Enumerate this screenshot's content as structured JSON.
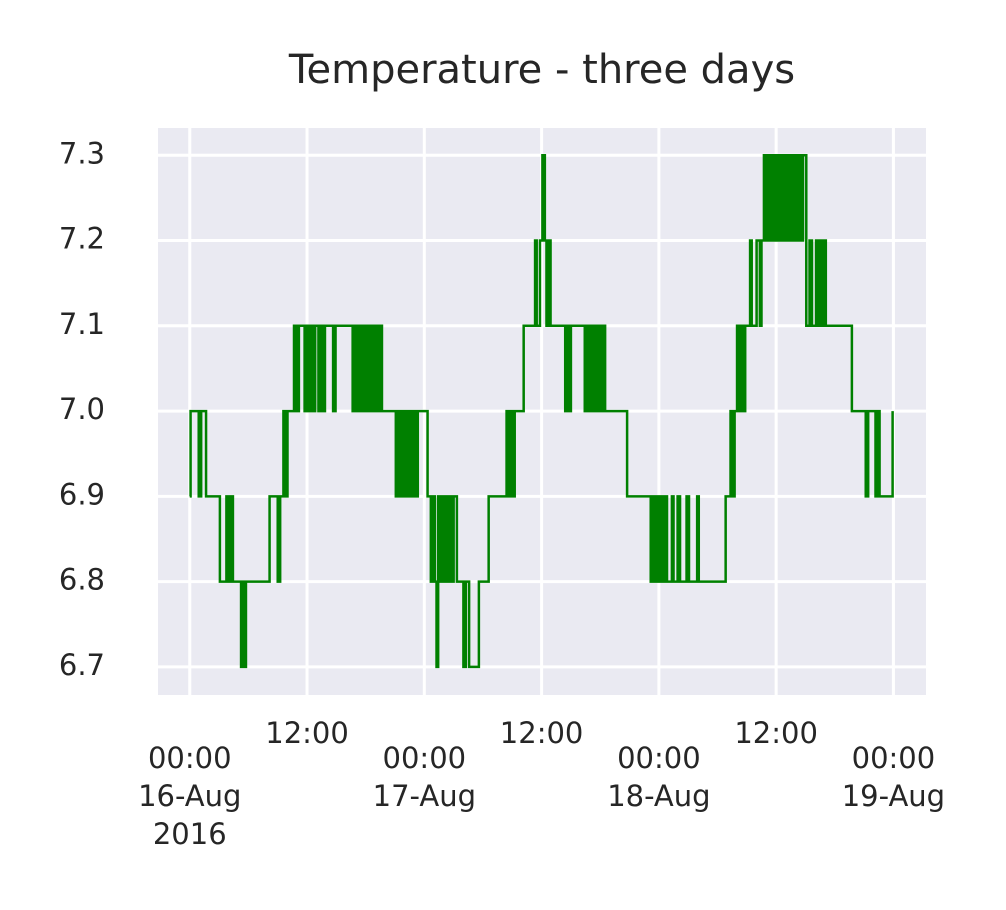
{
  "chart_data": {
    "type": "line",
    "drawstyle": "steps-post",
    "title": "Temperature - three days",
    "color": "#008000",
    "grid": true,
    "x": [
      "2016-08-16 00:00",
      "2016-08-16 00:05",
      "2016-08-16 00:55",
      "2016-08-16 01:10",
      "2016-08-16 01:40",
      "2016-08-16 03:05",
      "2016-08-16 03:45",
      "2016-08-16 04:00",
      "2016-08-16 04:10",
      "2016-08-16 04:25",
      "2016-08-16 05:15",
      "2016-08-16 05:25",
      "2016-08-16 05:40",
      "2016-08-16 05:45",
      "2016-08-16 08:10",
      "2016-08-16 09:00",
      "2016-08-16 09:15",
      "2016-08-16 09:35",
      "2016-08-16 09:50",
      "2016-08-16 10:00",
      "2016-08-16 10:40",
      "2016-08-16 10:55",
      "2016-08-16 11:10",
      "2016-08-16 11:45",
      "2016-08-16 12:00",
      "2016-08-16 12:10",
      "2016-08-16 12:25",
      "2016-08-16 12:35",
      "2016-08-16 12:50",
      "2016-08-16 13:10",
      "2016-08-16 13:25",
      "2016-08-16 13:35",
      "2016-08-16 13:50",
      "2016-08-16 14:40",
      "2016-08-16 14:55",
      "2016-08-16 16:40",
      "2016-08-16 16:55",
      "2016-08-16 17:05",
      "2016-08-16 17:20",
      "2016-08-16 17:30",
      "2016-08-16 17:40",
      "2016-08-16 17:55",
      "2016-08-16 18:05",
      "2016-08-16 18:20",
      "2016-08-16 18:30",
      "2016-08-16 18:45",
      "2016-08-16 18:55",
      "2016-08-16 19:10",
      "2016-08-16 19:25",
      "2016-08-16 19:40",
      "2016-08-16 21:05",
      "2016-08-16 21:15",
      "2016-08-16 21:30",
      "2016-08-16 21:40",
      "2016-08-16 21:55",
      "2016-08-16 22:05",
      "2016-08-16 22:20",
      "2016-08-16 22:30",
      "2016-08-16 22:45",
      "2016-08-16 22:55",
      "2016-08-16 23:10",
      "2016-08-16 23:20",
      "2016-08-17 00:20",
      "2016-08-17 00:40",
      "2016-08-17 00:50",
      "2016-08-17 01:05",
      "2016-08-17 01:15",
      "2016-08-17 01:25",
      "2016-08-17 01:35",
      "2016-08-17 01:45",
      "2016-08-17 02:00",
      "2016-08-17 02:10",
      "2016-08-17 02:25",
      "2016-08-17 02:35",
      "2016-08-17 02:50",
      "2016-08-17 03:00",
      "2016-08-17 03:20",
      "2016-08-17 04:00",
      "2016-08-17 04:15",
      "2016-08-17 04:35",
      "2016-08-17 05:35",
      "2016-08-17 06:35",
      "2016-08-17 08:25",
      "2016-08-17 08:40",
      "2016-08-17 08:50",
      "2016-08-17 09:05",
      "2016-08-17 09:15",
      "2016-08-17 10:10",
      "2016-08-17 11:20",
      "2016-08-17 11:30",
      "2016-08-17 11:50",
      "2016-08-17 12:05",
      "2016-08-17 12:20",
      "2016-08-17 12:30",
      "2016-08-17 12:45",
      "2016-08-17 12:55",
      "2016-08-17 14:25",
      "2016-08-17 14:35",
      "2016-08-17 14:45",
      "2016-08-17 15:00",
      "2016-08-17 16:25",
      "2016-08-17 16:40",
      "2016-08-17 16:50",
      "2016-08-17 17:00",
      "2016-08-17 17:15",
      "2016-08-17 17:25",
      "2016-08-17 17:40",
      "2016-08-17 17:50",
      "2016-08-17 18:05",
      "2016-08-17 18:15",
      "2016-08-17 18:30",
      "2016-08-17 20:45",
      "2016-08-17 23:10",
      "2016-08-17 23:25",
      "2016-08-17 23:35",
      "2016-08-17 23:50",
      "2016-08-18 00:00",
      "2016-08-18 00:10",
      "2016-08-18 00:25",
      "2016-08-18 00:35",
      "2016-08-18 00:50",
      "2016-08-18 01:20",
      "2016-08-18 01:30",
      "2016-08-18 01:55",
      "2016-08-18 02:10",
      "2016-08-18 02:50",
      "2016-08-18 03:05",
      "2016-08-18 03:55",
      "2016-08-18 04:05",
      "2016-08-18 06:50",
      "2016-08-18 07:20",
      "2016-08-18 07:35",
      "2016-08-18 07:45",
      "2016-08-18 08:00",
      "2016-08-18 08:10",
      "2016-08-18 08:25",
      "2016-08-18 08:35",
      "2016-08-18 08:50",
      "2016-08-18 09:20",
      "2016-08-18 09:30",
      "2016-08-18 10:00",
      "2016-08-18 10:20",
      "2016-08-18 10:30",
      "2016-08-18 10:45",
      "2016-08-18 10:55",
      "2016-08-18 11:10",
      "2016-08-18 11:20",
      "2016-08-18 11:30",
      "2016-08-18 11:45",
      "2016-08-18 11:55",
      "2016-08-18 12:10",
      "2016-08-18 12:20",
      "2016-08-18 12:35",
      "2016-08-18 12:45",
      "2016-08-18 12:55",
      "2016-08-18 13:10",
      "2016-08-18 13:20",
      "2016-08-18 13:35",
      "2016-08-18 13:45",
      "2016-08-18 14:00",
      "2016-08-18 14:10",
      "2016-08-18 14:20",
      "2016-08-18 14:35",
      "2016-08-18 14:45",
      "2016-08-18 15:05",
      "2016-08-18 15:25",
      "2016-08-18 15:40",
      "2016-08-18 16:05",
      "2016-08-18 16:15",
      "2016-08-18 16:30",
      "2016-08-18 16:40",
      "2016-08-18 16:55",
      "2016-08-18 17:05",
      "2016-08-18 19:45",
      "2016-08-18 21:10",
      "2016-08-18 21:25",
      "2016-08-18 22:10",
      "2016-08-18 22:25",
      "2016-08-18 22:35",
      "2016-08-18 23:55"
    ],
    "values": [
      6.9,
      7.0,
      6.9,
      7.0,
      6.9,
      6.8,
      6.9,
      6.8,
      6.9,
      6.8,
      6.7,
      6.8,
      6.7,
      6.8,
      6.9,
      6.8,
      6.9,
      7.0,
      6.9,
      7.0,
      7.1,
      7.0,
      7.1,
      7.0,
      7.1,
      7.0,
      7.1,
      7.0,
      7.1,
      7.0,
      7.1,
      7.0,
      7.1,
      7.0,
      7.1,
      7.0,
      7.1,
      7.0,
      7.1,
      7.0,
      7.1,
      7.0,
      7.1,
      7.0,
      7.1,
      7.0,
      7.1,
      7.0,
      7.1,
      7.0,
      6.9,
      7.0,
      6.9,
      7.0,
      6.9,
      7.0,
      6.9,
      7.0,
      6.9,
      7.0,
      6.9,
      7.0,
      6.9,
      6.8,
      6.9,
      6.8,
      6.7,
      6.9,
      6.8,
      6.9,
      6.8,
      6.9,
      6.8,
      6.9,
      6.8,
      6.9,
      6.8,
      6.7,
      6.8,
      6.7,
      6.8,
      6.9,
      7.0,
      6.9,
      7.0,
      6.9,
      7.0,
      7.1,
      7.2,
      7.1,
      7.2,
      7.3,
      7.2,
      7.1,
      7.2,
      7.1,
      7.0,
      7.1,
      7.0,
      7.1,
      7.0,
      7.1,
      7.0,
      7.1,
      7.0,
      7.1,
      7.0,
      7.1,
      7.0,
      7.1,
      7.0,
      6.9,
      6.8,
      6.9,
      6.8,
      6.9,
      6.8,
      6.9,
      6.8,
      6.9,
      6.8,
      6.9,
      6.8,
      6.9,
      6.8,
      6.9,
      6.8,
      6.9,
      6.8,
      6.9,
      7.0,
      6.9,
      7.0,
      7.1,
      7.0,
      7.1,
      7.0,
      7.1,
      7.2,
      7.1,
      7.2,
      7.1,
      7.2,
      7.3,
      7.2,
      7.3,
      7.2,
      7.3,
      7.2,
      7.3,
      7.2,
      7.3,
      7.2,
      7.3,
      7.2,
      7.3,
      7.2,
      7.3,
      7.2,
      7.3,
      7.2,
      7.3,
      7.2,
      7.3,
      7.1,
      7.2,
      7.1,
      7.2,
      7.1,
      7.2,
      7.1,
      7.2,
      7.1,
      7.0,
      6.9,
      7.0,
      6.9,
      7.0,
      6.9,
      7.0
    ],
    "xlim": [
      "2016-08-15 20:45",
      "2016-08-19 03:20"
    ],
    "xticks": [
      {
        "value": "2016-08-16 00:00",
        "label": [
          "00:00",
          "16-Aug",
          "2016"
        ]
      },
      {
        "value": "2016-08-17 00:00",
        "label": [
          "00:00",
          "17-Aug"
        ]
      },
      {
        "value": "2016-08-18 00:00",
        "label": [
          "00:00",
          "18-Aug"
        ]
      },
      {
        "value": "2016-08-19 00:00",
        "label": [
          "00:00",
          "19-Aug"
        ]
      }
    ],
    "xticks_minor": [
      {
        "value": "2016-08-16 12:00",
        "label": "12:00"
      },
      {
        "value": "2016-08-17 12:00",
        "label": "12:00"
      },
      {
        "value": "2016-08-18 12:00",
        "label": "12:00"
      }
    ],
    "ylim": [
      6.667,
      7.332
    ],
    "yticks": [
      {
        "value": 6.7,
        "label": "6.7"
      },
      {
        "value": 6.8,
        "label": "6.8"
      },
      {
        "value": 6.9,
        "label": "6.9"
      },
      {
        "value": 7.0,
        "label": "7.0"
      },
      {
        "value": 7.1,
        "label": "7.1"
      },
      {
        "value": 7.2,
        "label": "7.2"
      },
      {
        "value": 7.3,
        "label": "7.3"
      }
    ]
  }
}
